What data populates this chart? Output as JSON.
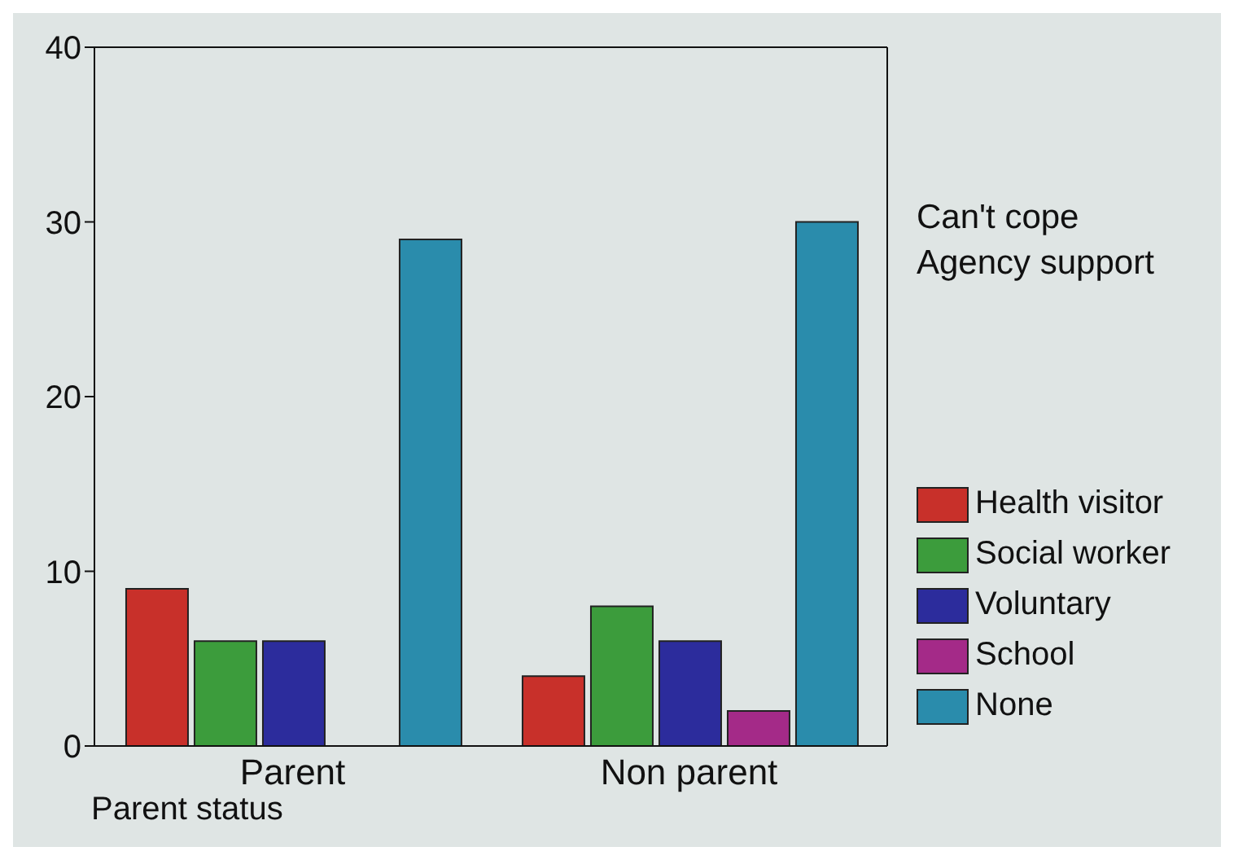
{
  "chart_data": {
    "type": "bar",
    "xlabel": "Parent status",
    "legend_title": "Can't cope\nAgency support",
    "categories": [
      "Parent",
      "Non parent"
    ],
    "series": [
      {
        "name": "Health visitor",
        "color": "#c8302a",
        "values": [
          9,
          4
        ]
      },
      {
        "name": "Social worker",
        "color": "#3c9c3c",
        "values": [
          6,
          8
        ]
      },
      {
        "name": "Voluntary",
        "color": "#2c2c9c",
        "values": [
          6,
          6
        ]
      },
      {
        "name": "School",
        "color": "#a42a88",
        "values": [
          0,
          2
        ]
      },
      {
        "name": "None",
        "color": "#2a8cac",
        "values": [
          29,
          30
        ]
      }
    ],
    "ylim": [
      0,
      40
    ],
    "yticks": [
      0,
      10,
      20,
      30,
      40
    ],
    "grid": false,
    "legend": "right"
  }
}
